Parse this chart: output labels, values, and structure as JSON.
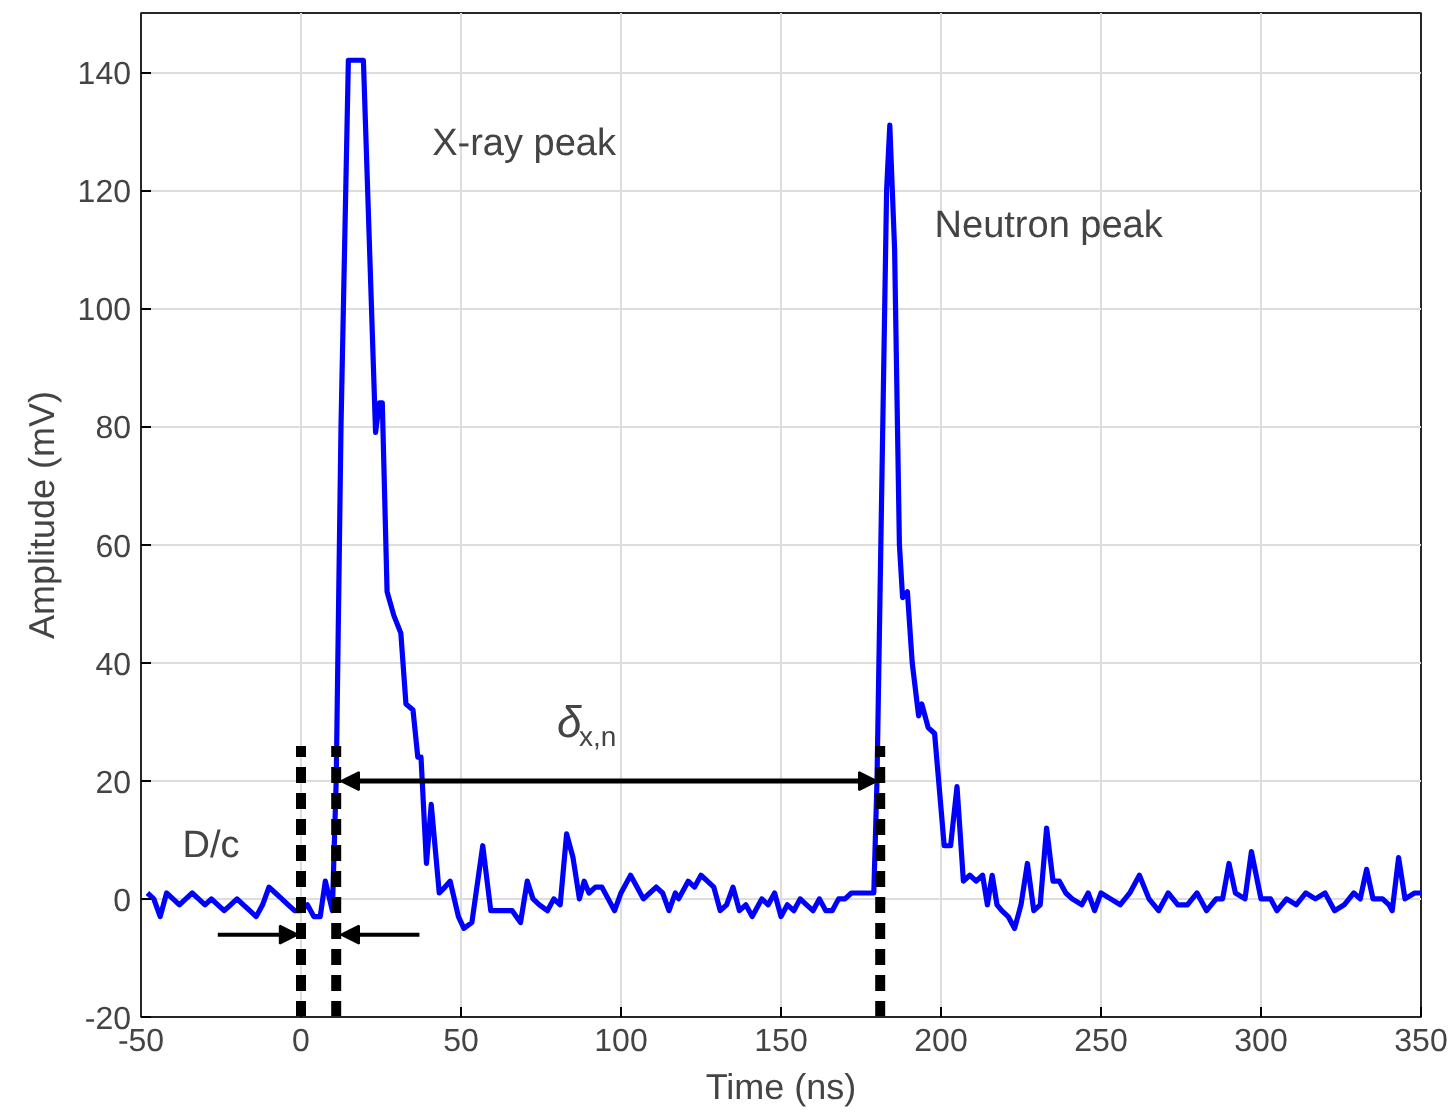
{
  "chart_data": {
    "type": "line",
    "xlabel": "Time (ns)",
    "ylabel": "Amplitude (mV)",
    "xlim": [
      -50,
      350
    ],
    "ylim": [
      -20,
      150
    ],
    "xticks": [
      -50,
      0,
      50,
      100,
      150,
      200,
      250,
      300,
      350
    ],
    "yticks": [
      -20,
      0,
      20,
      40,
      60,
      80,
      100,
      120,
      140
    ],
    "grid": true,
    "line_style": "solid",
    "marker": "none",
    "series": [
      {
        "color": "#0000ff",
        "x": [
          -48,
          -46,
          -44,
          -42,
          -40,
          -38,
          -36,
          -34,
          -32,
          -30,
          -28,
          -26,
          -24,
          -22,
          -20,
          -18,
          -16,
          -14,
          -12,
          -10,
          -8,
          -6,
          -4,
          -2,
          0,
          2,
          4,
          6,
          7.6,
          9.8,
          11,
          12.5,
          14.8,
          19.5,
          23.3,
          24.5,
          25.4,
          26.9,
          29,
          31.2,
          32.8,
          35,
          36.5,
          37.5,
          39.2,
          40.7,
          43.2,
          45,
          46.6,
          49.2,
          50.9,
          53.4,
          56.8,
          59.3,
          62,
          66,
          68.6,
          70.7,
          72.5,
          74.5,
          77,
          79,
          81,
          83,
          85,
          87,
          88.5,
          90,
          92,
          94,
          96,
          98,
          100,
          103,
          105,
          107,
          109,
          111,
          113,
          115,
          117,
          118,
          121,
          123,
          125,
          127,
          129,
          131,
          133,
          135,
          137,
          139,
          141,
          144,
          146,
          148,
          150,
          152,
          154,
          156,
          158,
          160,
          162,
          164,
          166,
          168,
          170,
          172,
          175,
          178,
          179,
          180,
          181.5,
          183,
          184,
          185.5,
          187,
          188,
          189.5,
          191,
          193,
          194,
          196,
          198,
          201,
          203,
          205,
          207,
          209,
          211,
          213,
          214.5,
          216,
          217.5,
          219,
          221,
          223,
          225,
          227,
          229,
          231,
          233,
          235,
          237,
          239,
          241,
          244,
          246,
          248,
          250,
          253,
          256,
          259,
          262,
          265,
          268,
          271,
          274,
          277,
          280,
          283,
          286,
          288,
          290,
          292,
          295,
          297,
          300,
          303,
          305,
          308,
          311,
          314,
          317,
          320,
          323,
          326,
          329,
          331,
          333,
          335,
          338,
          340,
          341,
          343,
          345,
          348,
          350
        ],
        "values": [
          1,
          0,
          -3,
          1,
          0,
          -1,
          0,
          1,
          0,
          -1,
          0,
          -1,
          -2,
          -1,
          0,
          -1,
          -2,
          -3,
          -1,
          2,
          1,
          0,
          -1,
          -2,
          -2,
          -1,
          -3,
          -3,
          3,
          -2,
          20,
          80,
          142,
          142,
          79,
          84,
          84,
          52,
          48,
          45,
          33,
          32,
          24,
          24,
          6,
          16,
          1,
          2,
          3,
          -3,
          -5,
          -4,
          9,
          -2,
          -2,
          -2,
          -4,
          3,
          0,
          -1,
          -2,
          0,
          -1,
          11,
          7,
          0,
          3,
          1,
          2,
          2,
          0,
          -2,
          1,
          4,
          2,
          0,
          1,
          2,
          1,
          -2,
          1,
          0,
          3,
          2,
          4,
          3,
          2,
          -2,
          -1,
          2,
          -2,
          -1,
          -3,
          0,
          -1,
          1,
          -3,
          -1,
          -2,
          0,
          -1,
          -2,
          0,
          -2,
          -2,
          0,
          0,
          1,
          1,
          1,
          1,
          20,
          70,
          120,
          131,
          110,
          60,
          51,
          52,
          40,
          31,
          33,
          29,
          28,
          9,
          9,
          19,
          3,
          4,
          3,
          4,
          -1,
          4,
          -1,
          -2,
          -3,
          -5,
          -1,
          6,
          -2,
          -1,
          12,
          3,
          3,
          1,
          0,
          -1,
          1,
          -2,
          1,
          0,
          -1,
          1,
          4,
          0,
          -2,
          1,
          -1,
          -1,
          1,
          -2,
          0,
          0,
          6,
          1,
          0,
          8,
          0,
          0,
          -2,
          0,
          -1,
          1,
          0,
          1,
          -2,
          -1,
          1,
          0,
          5,
          0,
          0,
          -1,
          -2,
          7,
          0,
          1,
          1
        ]
      }
    ],
    "ref_lines": [
      {
        "axis": "x",
        "value": 0,
        "color": "#000000",
        "line_style": "dashed"
      },
      {
        "axis": "x",
        "value": 11,
        "color": "#000000",
        "line_style": "dashed"
      },
      {
        "axis": "x",
        "value": 181,
        "color": "#000000",
        "line_style": "dashed"
      }
    ],
    "annotations": [
      "X-ray peak",
      "Neutron peak",
      "D/c",
      "δ$_{x,n}$"
    ]
  }
}
